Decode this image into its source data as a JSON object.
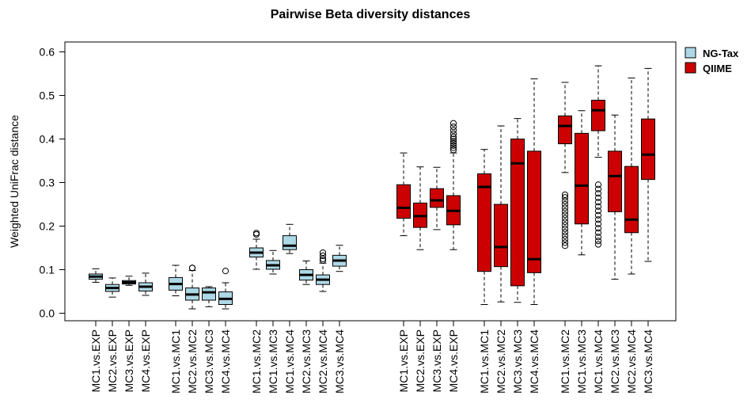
{
  "chart_data": {
    "type": "box",
    "title": "Pairwise Beta diversity distances",
    "xlabel": "",
    "ylabel": "Weighted UniFrac distance",
    "ylim": [
      0,
      0.6
    ],
    "yticks": [
      0.0,
      0.1,
      0.2,
      0.3,
      0.4,
      0.5,
      0.6
    ],
    "ytick_labels": [
      "0.0",
      "0.1",
      "0.2",
      "0.3",
      "0.4",
      "0.5",
      "0.6"
    ],
    "grid": false,
    "legend_position": "top-right",
    "legend": [
      {
        "name": "NG-Tax",
        "color": "#add8e6"
      },
      {
        "name": "QIIME",
        "color": "#cc0000"
      }
    ],
    "series": [
      {
        "name": "NG-Tax",
        "color": "#add8e6",
        "boxes": [
          {
            "label": "MC1.vs.EXP",
            "whisker_low": 0.071,
            "q1": 0.078,
            "median": 0.084,
            "q3": 0.09,
            "whisker_high": 0.102,
            "outliers": []
          },
          {
            "label": "MC2.vs.EXP",
            "whisker_low": 0.037,
            "q1": 0.05,
            "median": 0.058,
            "q3": 0.066,
            "whisker_high": 0.081,
            "outliers": []
          },
          {
            "label": "MC3.vs.EXP",
            "whisker_low": 0.064,
            "q1": 0.067,
            "median": 0.071,
            "q3": 0.075,
            "whisker_high": 0.085,
            "outliers": []
          },
          {
            "label": "MC4.vs.EXP",
            "whisker_low": 0.041,
            "q1": 0.051,
            "median": 0.061,
            "q3": 0.07,
            "whisker_high": 0.092,
            "outliers": []
          },
          {
            "label": "MC1.vs.MC1",
            "whisker_low": 0.04,
            "q1": 0.053,
            "median": 0.067,
            "q3": 0.082,
            "whisker_high": 0.11,
            "outliers": []
          },
          {
            "label": "MC2.vs.MC2",
            "whisker_low": 0.01,
            "q1": 0.03,
            "median": 0.043,
            "q3": 0.058,
            "whisker_high": 0.098,
            "outliers": [
              0.104,
              0.104
            ]
          },
          {
            "label": "MC3.vs.MC3",
            "whisker_low": 0.015,
            "q1": 0.03,
            "median": 0.048,
            "q3": 0.058,
            "whisker_high": 0.061,
            "outliers": []
          },
          {
            "label": "MC4.vs.MC4",
            "whisker_low": 0.01,
            "q1": 0.02,
            "median": 0.033,
            "q3": 0.049,
            "whisker_high": 0.07,
            "outliers": [
              0.097
            ]
          },
          {
            "label": "MC1.vs.MC2",
            "whisker_low": 0.101,
            "q1": 0.129,
            "median": 0.139,
            "q3": 0.15,
            "whisker_high": 0.17,
            "outliers": [
              0.184,
              0.181
            ]
          },
          {
            "label": "MC1.vs.MC3",
            "whisker_low": 0.09,
            "q1": 0.101,
            "median": 0.11,
            "q3": 0.121,
            "whisker_high": 0.144,
            "outliers": []
          },
          {
            "label": "MC1.vs.MC4",
            "whisker_low": 0.137,
            "q1": 0.146,
            "median": 0.155,
            "q3": 0.178,
            "whisker_high": 0.204,
            "outliers": []
          },
          {
            "label": "MC2.vs.MC3",
            "whisker_low": 0.066,
            "q1": 0.076,
            "median": 0.088,
            "q3": 0.1,
            "whisker_high": 0.12,
            "outliers": []
          },
          {
            "label": "MC2.vs.MC4",
            "whisker_low": 0.05,
            "q1": 0.066,
            "median": 0.077,
            "q3": 0.088,
            "whisker_high": 0.115,
            "outliers": [
              0.121,
              0.125,
              0.132,
              0.139
            ]
          },
          {
            "label": "MC3.vs.MC4",
            "whisker_low": 0.096,
            "q1": 0.108,
            "median": 0.121,
            "q3": 0.133,
            "whisker_high": 0.156,
            "outliers": []
          }
        ]
      },
      {
        "name": "QIIME",
        "color": "#cc0000",
        "boxes": [
          {
            "label": "MC1.vs.EXP",
            "whisker_low": 0.178,
            "q1": 0.218,
            "median": 0.242,
            "q3": 0.295,
            "whisker_high": 0.368,
            "outliers": []
          },
          {
            "label": "MC2.vs.EXP",
            "whisker_low": 0.146,
            "q1": 0.197,
            "median": 0.223,
            "q3": 0.253,
            "whisker_high": 0.336,
            "outliers": []
          },
          {
            "label": "MC3.vs.EXP",
            "whisker_low": 0.192,
            "q1": 0.243,
            "median": 0.259,
            "q3": 0.286,
            "whisker_high": 0.335,
            "outliers": []
          },
          {
            "label": "MC4.vs.EXP",
            "whisker_low": 0.146,
            "q1": 0.203,
            "median": 0.235,
            "q3": 0.27,
            "whisker_high": 0.368,
            "outliers": [
              0.375,
              0.38,
              0.385,
              0.39,
              0.395,
              0.4,
              0.405,
              0.412,
              0.42,
              0.428,
              0.436
            ]
          },
          {
            "label": "MC1.vs.MC1",
            "whisker_low": 0.02,
            "q1": 0.096,
            "median": 0.29,
            "q3": 0.32,
            "whisker_high": 0.376,
            "outliers": []
          },
          {
            "label": "MC2.vs.MC2",
            "whisker_low": 0.026,
            "q1": 0.107,
            "median": 0.152,
            "q3": 0.25,
            "whisker_high": 0.43,
            "outliers": []
          },
          {
            "label": "MC3.vs.MC3",
            "whisker_low": 0.025,
            "q1": 0.063,
            "median": 0.344,
            "q3": 0.4,
            "whisker_high": 0.447,
            "outliers": []
          },
          {
            "label": "MC4.vs.MC4",
            "whisker_low": 0.02,
            "q1": 0.093,
            "median": 0.124,
            "q3": 0.372,
            "whisker_high": 0.538,
            "outliers": []
          },
          {
            "label": "MC1.vs.MC2",
            "whisker_low": 0.323,
            "q1": 0.389,
            "median": 0.43,
            "q3": 0.453,
            "whisker_high": 0.53,
            "outliers": [
              0.155,
              0.162,
              0.17,
              0.178,
              0.186,
              0.194,
              0.202,
              0.21,
              0.218,
              0.226,
              0.234,
              0.242,
              0.25,
              0.258,
              0.266,
              0.272
            ]
          },
          {
            "label": "MC1.vs.MC3",
            "whisker_low": 0.134,
            "q1": 0.205,
            "median": 0.293,
            "q3": 0.413,
            "whisker_high": 0.465,
            "outliers": []
          },
          {
            "label": "MC1.vs.MC4",
            "whisker_low": 0.358,
            "q1": 0.419,
            "median": 0.466,
            "q3": 0.489,
            "whisker_high": 0.568,
            "outliers": [
              0.158,
              0.166,
              0.175,
              0.185,
              0.195,
              0.205,
              0.215,
              0.225,
              0.235,
              0.245,
              0.255,
              0.265,
              0.275,
              0.285,
              0.295
            ]
          },
          {
            "label": "MC2.vs.MC3",
            "whisker_low": 0.078,
            "q1": 0.233,
            "median": 0.315,
            "q3": 0.372,
            "whisker_high": 0.455,
            "outliers": []
          },
          {
            "label": "MC2.vs.MC4",
            "whisker_low": 0.09,
            "q1": 0.185,
            "median": 0.215,
            "q3": 0.337,
            "whisker_high": 0.54,
            "outliers": []
          },
          {
            "label": "MC3.vs.MC4",
            "whisker_low": 0.119,
            "q1": 0.307,
            "median": 0.364,
            "q3": 0.446,
            "whisker_high": 0.562,
            "outliers": []
          }
        ]
      }
    ]
  }
}
